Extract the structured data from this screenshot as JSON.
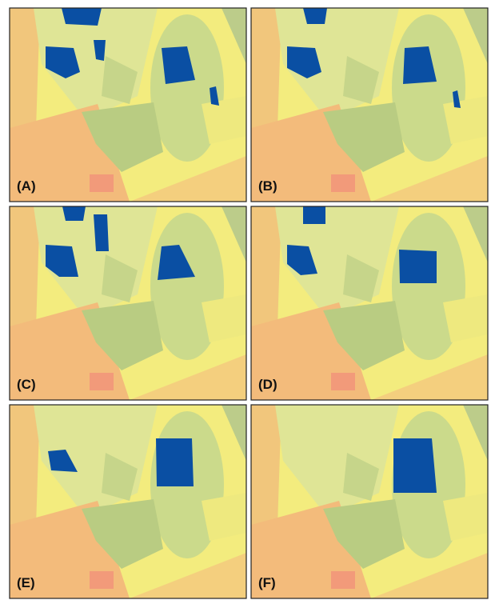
{
  "panels": [
    {
      "label": "(A)"
    },
    {
      "label": "(B)"
    },
    {
      "label": "(C)"
    },
    {
      "label": "(D)"
    },
    {
      "label": "(E)"
    },
    {
      "label": "(F)"
    }
  ]
}
